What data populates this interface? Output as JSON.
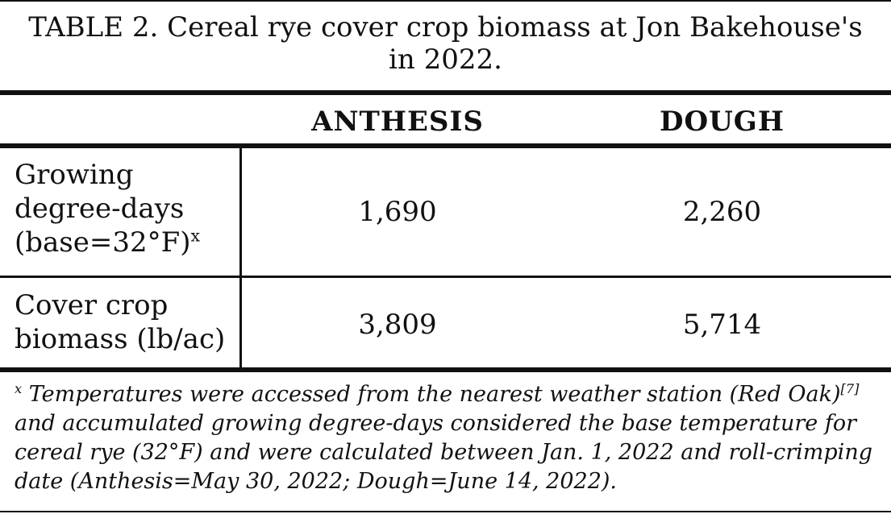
{
  "table": {
    "title_line1": "TABLE 2. Cereal rye cover crop biomass at Jon Bakehouse's",
    "title_line2": "in 2022.",
    "columns": [
      "ANTHESIS",
      "DOUGH"
    ],
    "rows": [
      {
        "label_lines": [
          "Growing",
          "degree-days",
          "(base=32°F)"
        ],
        "label_sup": "x",
        "values": [
          "1,690",
          "2,260"
        ]
      },
      {
        "label_lines": [
          "Cover crop",
          "biomass (lb/ac)"
        ],
        "values": [
          "3,809",
          "5,714"
        ]
      }
    ],
    "footnote": {
      "marker": "x",
      "text_part1": "Temperatures were accessed from the nearest weather station (Red Oak)",
      "ref": "[7]",
      "text_part2": " and accumulated growing degree-days considered the base temperature for cereal rye (32°F) and were calculated between Jan. 1, 2022 and roll-crimping date (Anthesis=May 30, 2022; Dough=June 14, 2022)."
    }
  }
}
